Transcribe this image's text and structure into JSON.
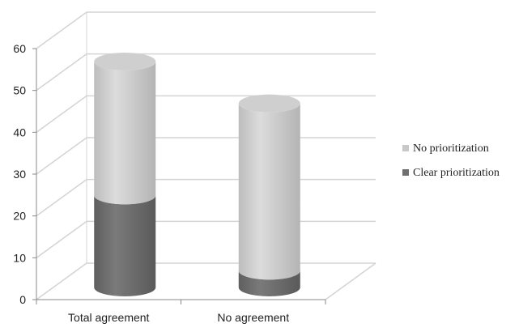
{
  "chart_data": {
    "type": "bar",
    "title": "",
    "xlabel": "",
    "ylabel": "",
    "ylim": [
      0,
      60
    ],
    "yticks": [
      0,
      10,
      20,
      30,
      40,
      50,
      60
    ],
    "categories": [
      "Total agreement",
      "No agreement"
    ],
    "series": [
      {
        "name": "Clear prioritization",
        "values": [
          22,
          4
        ],
        "color": "#6f6f6f"
      },
      {
        "name": "No prioritization",
        "values": [
          32,
          40
        ],
        "color": "#c8c8c8"
      }
    ],
    "stacked": true,
    "shape": "cylinder",
    "grid": true,
    "legend": "right"
  }
}
